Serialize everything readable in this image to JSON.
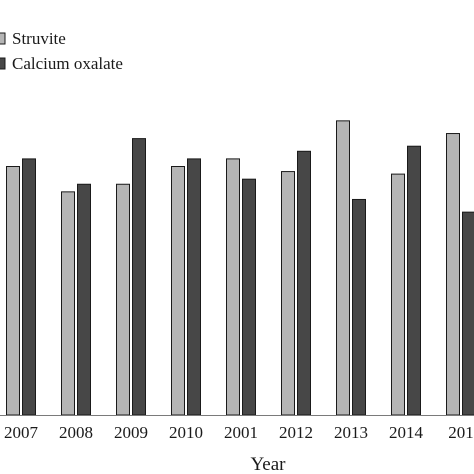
{
  "chart_data": {
    "type": "bar",
    "categories": [
      "2007",
      "2008",
      "2009",
      "2010",
      "2001",
      "2012",
      "2013",
      "2014",
      "201"
    ],
    "series": [
      {
        "name": "Struvite",
        "color": "#b5b5b5",
        "values": [
          98,
          88,
          91,
          98,
          101,
          96,
          116,
          95,
          111
        ]
      },
      {
        "name": "Calcium oxalate",
        "color": "#474747",
        "values": [
          101,
          91,
          109,
          101,
          93,
          104,
          85,
          106,
          80
        ]
      }
    ],
    "title": "",
    "xlabel": "Year",
    "ylabel": "",
    "ylim": [
      0,
      140
    ],
    "legend_position": "top-left",
    "grid": false
  }
}
